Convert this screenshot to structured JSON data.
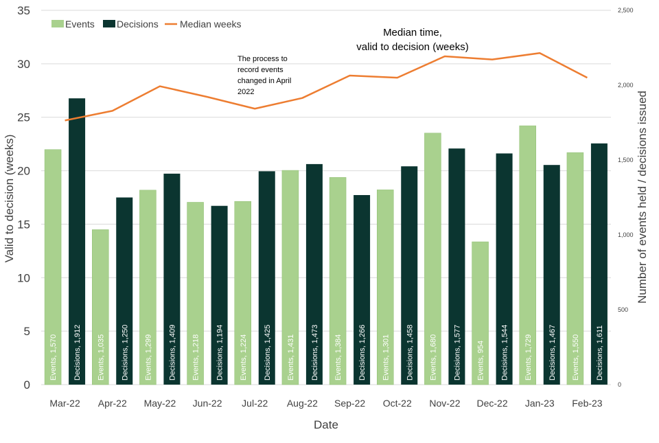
{
  "chart_data": {
    "type": "bar",
    "categories": [
      "Mar-22",
      "Apr-22",
      "May-22",
      "Jun-22",
      "Jul-22",
      "Aug-22",
      "Sep-22",
      "Oct-22",
      "Nov-22",
      "Dec-22",
      "Jan-23",
      "Feb-23"
    ],
    "series": [
      {
        "name": "Events",
        "axis": "right",
        "kind": "bar",
        "color": "#a9d18e",
        "values": [
          1570,
          1035,
          1299,
          1218,
          1224,
          1431,
          1384,
          1301,
          1680,
          954,
          1729,
          1550
        ],
        "labels": [
          "Events, 1,570",
          "Events, 1,035",
          "Events, 1,299",
          "Events, 1,218",
          "Events, 1,224",
          "Events, 1,431",
          "Events, 1,384",
          "Events, 1,301",
          "Events, 1,680",
          "Events, 954",
          "Events, 1,729",
          "Events, 1,550"
        ]
      },
      {
        "name": "Decisions",
        "axis": "right",
        "kind": "bar",
        "color": "#0b3530",
        "values": [
          1912,
          1250,
          1409,
          1194,
          1425,
          1473,
          1266,
          1458,
          1577,
          1544,
          1467,
          1611
        ],
        "labels": [
          "Decisions, 1,912",
          "Decisions, 1,250",
          "Decisions, 1,409",
          "Decisions, 1,194",
          "Decisions, 1,425",
          "Decisions, 1,473",
          "Decisions, 1,266",
          "Decisions, 1,458",
          "Decisions, 1,577",
          "Decisions, 1,544",
          "Decisions, 1,467",
          "Decisions, 1,611"
        ]
      },
      {
        "name": "Median weeks",
        "axis": "left",
        "kind": "line",
        "color": "#ed7d31",
        "values": [
          24.7,
          25.6,
          27.9,
          26.9,
          25.8,
          26.8,
          28.9,
          28.7,
          30.7,
          30.4,
          31.0,
          28.7
        ]
      }
    ],
    "xlabel": "Date",
    "ylabel": "Valid to decision (weeks)",
    "ylabel_right": "Number of events held / decisions issued",
    "ylim": [
      0,
      35
    ],
    "ylim_right": [
      0,
      2500
    ],
    "yticks": [
      "0",
      "5",
      "10",
      "15",
      "20",
      "25",
      "30",
      "35"
    ],
    "yticks_right": [
      "0",
      "500",
      "1,000",
      "1,500",
      "2,000",
      "2,500"
    ],
    "grid": true,
    "legend": "top-left",
    "annotations": [
      {
        "lines": [
          "The process to",
          "record events",
          "changed in April",
          "2022"
        ]
      },
      {
        "lines": [
          "Median time,",
          "valid to decision (weeks)"
        ]
      }
    ]
  }
}
